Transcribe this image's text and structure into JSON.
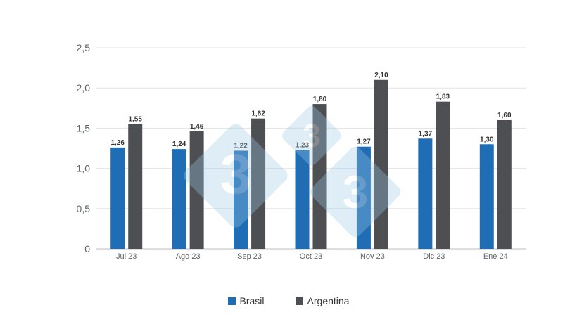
{
  "chart_data": {
    "type": "bar",
    "categories": [
      "Jul 23",
      "Ago 23",
      "Sep 23",
      "Oct 23",
      "Nov 23",
      "Dic 23",
      "Ene 24"
    ],
    "series": [
      {
        "name": "Brasil",
        "color": "#1f6db5",
        "values": [
          1.26,
          1.24,
          1.22,
          1.23,
          1.27,
          1.37,
          1.3
        ],
        "labels": [
          "1,26",
          "1,24",
          "1,22",
          "1,23",
          "1,27",
          "1,37",
          "1,30"
        ]
      },
      {
        "name": "Argentina",
        "color": "#4d4f53",
        "values": [
          1.55,
          1.46,
          1.62,
          1.8,
          2.1,
          1.83,
          1.6
        ],
        "labels": [
          "1,55",
          "1,46",
          "1,62",
          "1,80",
          "2,10",
          "1,83",
          "1,60"
        ]
      }
    ],
    "ylim": [
      0,
      2.5
    ],
    "yticks": [
      0,
      0.5,
      1.0,
      1.5,
      2.0,
      2.5
    ],
    "ytick_labels": [
      "0",
      "0,5",
      "1,0",
      "1,5",
      "2,0",
      "2,5"
    ],
    "grid": true,
    "legend_position": "bottom-center"
  },
  "watermark": {
    "text": "3",
    "color": "#9cc9e6"
  }
}
